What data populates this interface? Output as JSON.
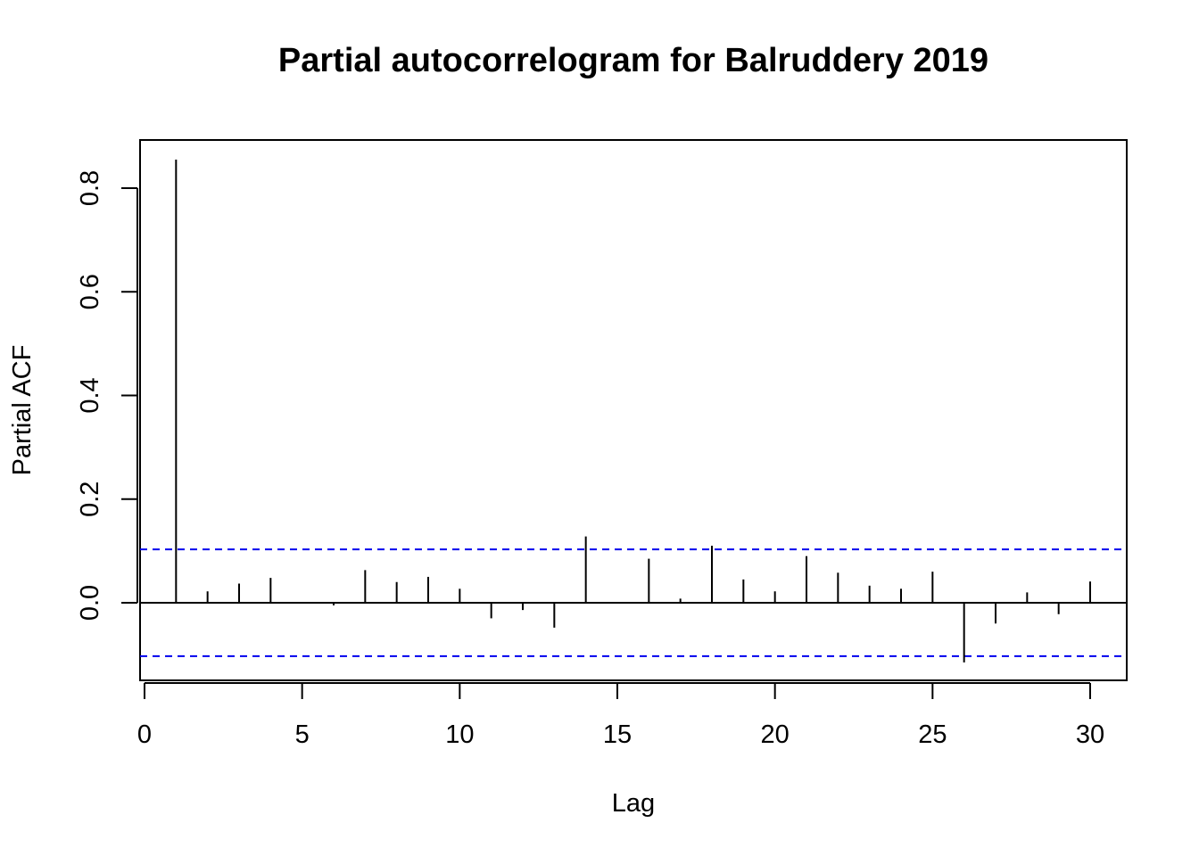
{
  "chart_data": {
    "type": "bar",
    "title": "Partial autocorrelogram for Balruddery 2019",
    "xlabel": "Lag",
    "ylabel": "Partial ACF",
    "xlim": [
      0,
      30
    ],
    "ylim": [
      -0.15,
      0.86
    ],
    "x_ticks": [
      0,
      5,
      10,
      15,
      20,
      25,
      30
    ],
    "x_tick_labels": [
      "0",
      "5",
      "10",
      "15",
      "20",
      "25",
      "30"
    ],
    "y_ticks": [
      0.0,
      0.2,
      0.4,
      0.6,
      0.8
    ],
    "y_tick_labels": [
      "0.0",
      "0.2",
      "0.4",
      "0.6",
      "0.8"
    ],
    "lags": [
      1,
      2,
      3,
      4,
      5,
      6,
      7,
      8,
      9,
      10,
      11,
      12,
      13,
      14,
      15,
      16,
      17,
      18,
      19,
      20,
      21,
      22,
      23,
      24,
      25,
      26,
      27,
      28,
      29,
      30
    ],
    "values": [
      0.855,
      0.022,
      0.037,
      0.048,
      -0.001,
      -0.005,
      0.063,
      0.04,
      0.05,
      0.027,
      -0.03,
      -0.014,
      -0.048,
      0.128,
      -0.001,
      0.085,
      0.008,
      0.11,
      0.045,
      0.022,
      0.09,
      0.058,
      0.033,
      0.027,
      0.06,
      -0.115,
      -0.04,
      0.02,
      -0.022,
      0.041
    ],
    "confidence_limit": 0.103,
    "confidence_color": "#0000ee",
    "grid": false,
    "legend": "none"
  }
}
